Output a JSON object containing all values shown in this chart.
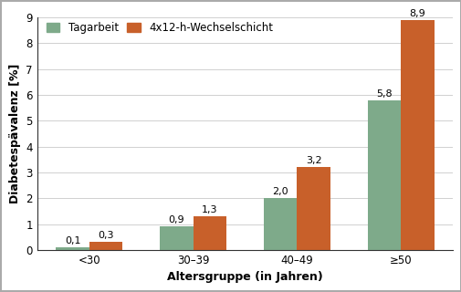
{
  "categories": [
    "<30",
    "30–39",
    "40–49",
    "≥50"
  ],
  "tagarbeit_values": [
    0.1,
    0.9,
    2.0,
    5.8
  ],
  "wechselschicht_values": [
    0.3,
    1.3,
    3.2,
    8.9
  ],
  "tagarbeit_color": "#7eaa8a",
  "wechselschicht_color": "#c8602a",
  "xlabel": "Altersgruppe (in Jahren)",
  "ylim": [
    0,
    9
  ],
  "yticks": [
    0,
    1,
    2,
    3,
    4,
    5,
    6,
    7,
    8,
    9
  ],
  "legend_tagarbeit": "Tagarbeit",
  "legend_wechselschicht": "4x12-h-Wechselschicht",
  "bar_width": 0.32,
  "label_fontsize": 8.0,
  "axis_label_fontsize": 9,
  "tick_fontsize": 8.5,
  "legend_fontsize": 8.5,
  "background_color": "#ffffff",
  "grid_color": "#d0d0d0",
  "value_labels_tagarbeit": [
    "0,1",
    "0,9",
    "2,0",
    "5,8"
  ],
  "value_labels_wechselschicht": [
    "0,3",
    "1,3",
    "3,2",
    "8,9"
  ],
  "outer_border_color": "#aaaaaa",
  "spine_color": "#333333"
}
